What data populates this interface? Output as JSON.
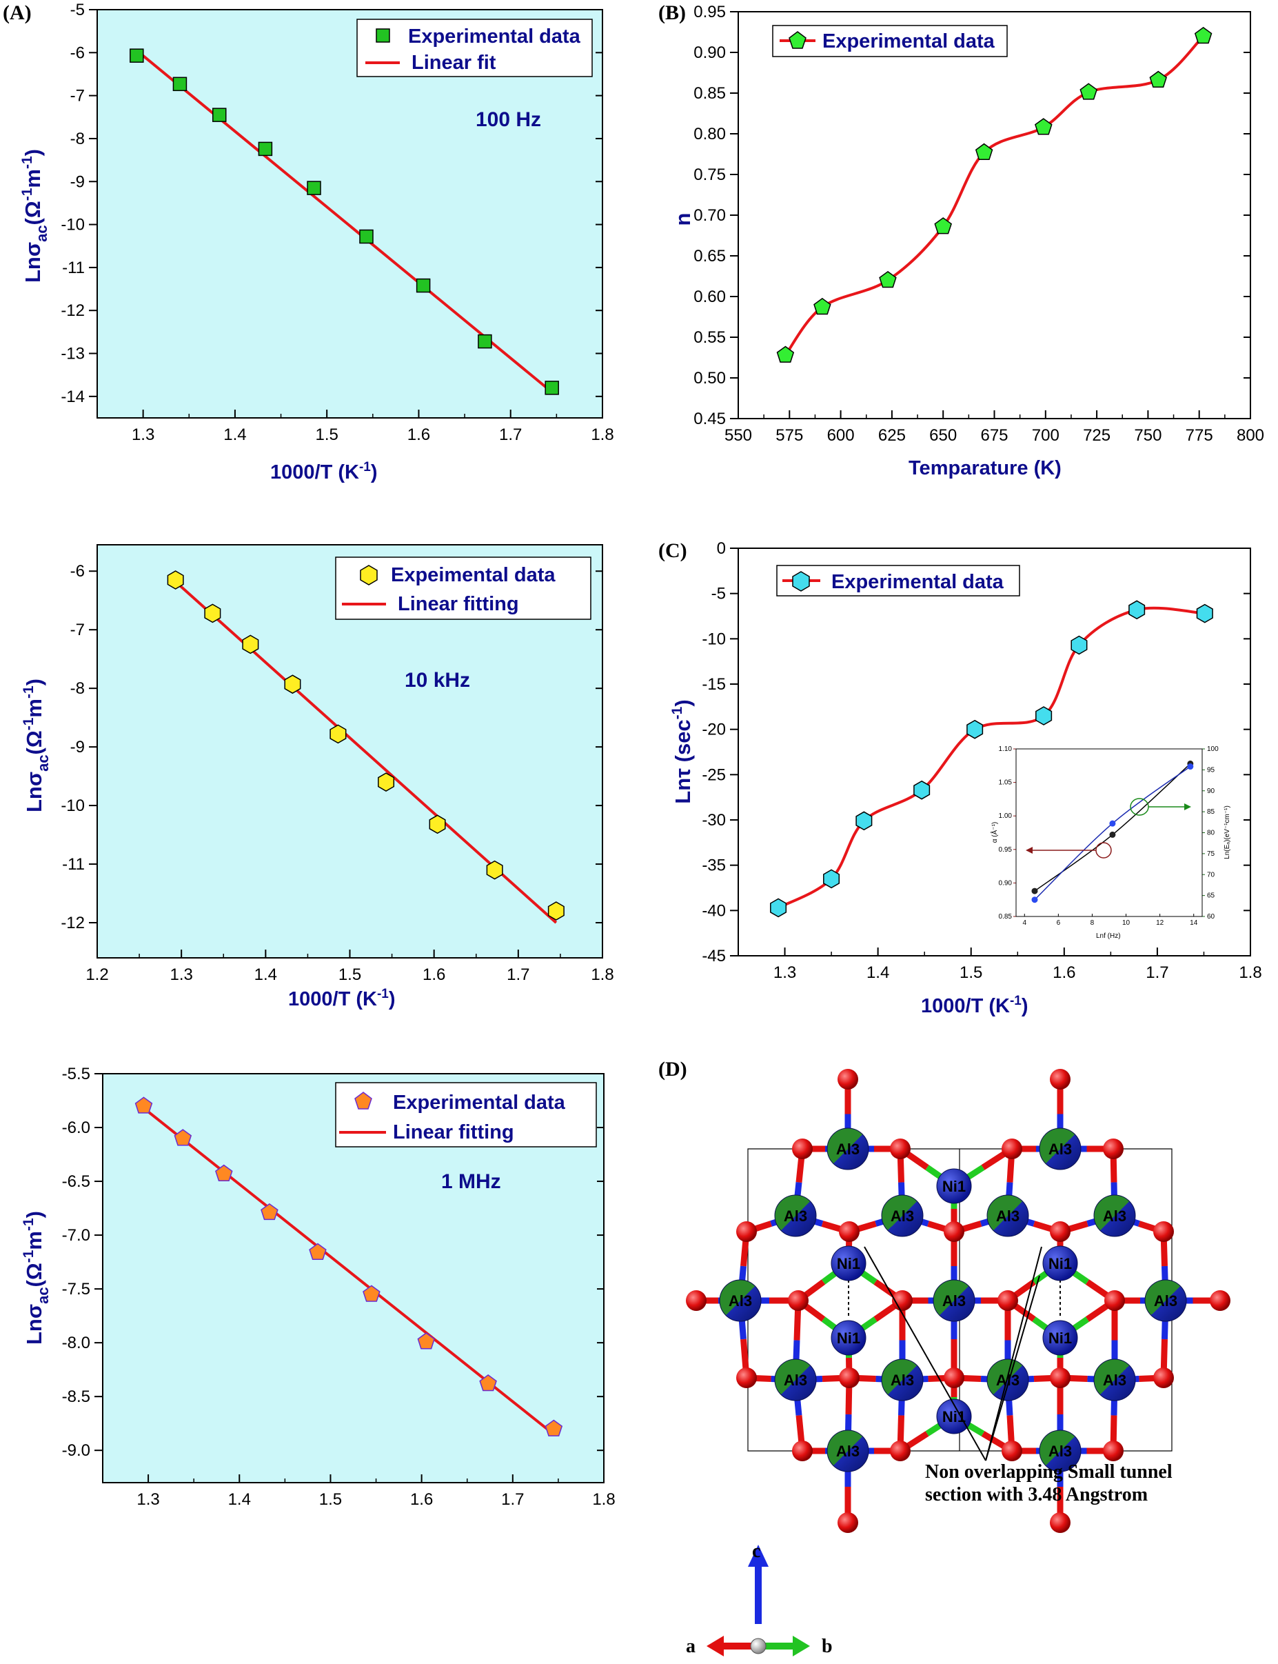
{
  "panel_labels": {
    "A": "(A)",
    "B": "(B)",
    "C": "(C)",
    "D": "(D)"
  },
  "colors": {
    "plot_bg": "#ccf7f9",
    "fit_line": "#e8161a",
    "axis_text": "#0d0d8c",
    "square_marker": "#22c322",
    "hexagon_marker_yellow": "#ffee22",
    "pentagon_marker_orange": "#ff8822",
    "pentagon_marker_green": "#33ee33",
    "hexagon_marker_cyan": "#44ddee"
  },
  "chart_data": [
    {
      "id": "A",
      "type": "scatter",
      "xlabel": "1000/T (K",
      "xlabel_sup": "-1",
      "xlabel_end": ")",
      "ylabel_prefix": "Ln",
      "ylabel_sigma": "σ",
      "ylabel_sub": "ac",
      "ylabel_unit": "(Ω",
      "ylabel_sup1": "-1",
      "ylabel_mid": "m",
      "ylabel_sup2": "-1",
      "ylabel_end": ")",
      "xlim": [
        1.25,
        1.8
      ],
      "ylim": [
        -14.5,
        -5
      ],
      "xticks": [
        "1.3",
        "1.4",
        "1.5",
        "1.6",
        "1.7",
        "1.8"
      ],
      "yticks": [
        "-5",
        "-6",
        "-7",
        "-8",
        "-9",
        "-10",
        "-11",
        "-12",
        "-13",
        "-14"
      ],
      "annotation": "100 Hz",
      "legend": [
        "Experimental data",
        "Linear fit"
      ],
      "marker": "square",
      "series": [
        {
          "x": [
            1.293,
            1.34,
            1.383,
            1.433,
            1.486,
            1.543,
            1.605,
            1.672,
            1.745
          ],
          "y": [
            -6.07,
            -6.73,
            -7.45,
            -8.24,
            -9.15,
            -10.28,
            -11.42,
            -12.72,
            -13.8
          ]
        }
      ],
      "fit": {
        "x": [
          1.293,
          1.745
        ],
        "y": [
          -5.95,
          -13.9
        ]
      }
    },
    {
      "id": "B",
      "type": "line",
      "xlabel": "Temparature (K)",
      "ylabel": "n",
      "xlim": [
        550,
        800
      ],
      "ylim": [
        0.45,
        0.95
      ],
      "xticks": [
        "550",
        "575",
        "600",
        "625",
        "650",
        "675",
        "700",
        "725",
        "750",
        "775",
        "800"
      ],
      "yticks": [
        "0.45",
        "0.50",
        "0.55",
        "0.60",
        "0.65",
        "0.70",
        "0.75",
        "0.80",
        "0.85",
        "0.90",
        "0.95"
      ],
      "legend": [
        "Experimental data"
      ],
      "marker": "pentagon",
      "series": [
        {
          "x": [
            573,
            591,
            623,
            650,
            670,
            699,
            721,
            755,
            777
          ],
          "y": [
            0.528,
            0.587,
            0.62,
            0.686,
            0.777,
            0.808,
            0.851,
            0.866,
            0.92
          ]
        }
      ]
    },
    {
      "id": "A2",
      "type": "scatter",
      "xlabel": "1000/T (K",
      "xlabel_sup": "-1",
      "xlabel_end": ")",
      "ylabel_prefix": "Ln",
      "ylabel_sigma": "σ",
      "ylabel_sub": "ac",
      "ylabel_unit": "(Ω",
      "ylabel_sup1": "-1",
      "ylabel_mid": "m",
      "ylabel_sup2": "-1",
      "ylabel_end": ")",
      "xlim": [
        1.2,
        1.8
      ],
      "ylim": [
        -12.6,
        -5.55
      ],
      "xticks": [
        "1.2",
        "1.3",
        "1.4",
        "1.5",
        "1.6",
        "1.7",
        "1.8"
      ],
      "yticks": [
        "-6",
        "-7",
        "-8",
        "-9",
        "-10",
        "-11",
        "-12"
      ],
      "annotation": "10 kHz",
      "legend": [
        "Expeimental data",
        "Linear fitting"
      ],
      "marker": "hexagon",
      "series": [
        {
          "x": [
            1.293,
            1.337,
            1.382,
            1.432,
            1.486,
            1.543,
            1.604,
            1.672,
            1.745
          ],
          "y": [
            -6.15,
            -6.72,
            -7.25,
            -7.93,
            -8.78,
            -9.6,
            -10.32,
            -11.1,
            -11.8
          ]
        }
      ],
      "fit": {
        "x": [
          1.293,
          1.745
        ],
        "y": [
          -6.18,
          -12.0
        ]
      }
    },
    {
      "id": "C",
      "type": "line",
      "xlabel": "1000/T (K",
      "xlabel_sup": "-1",
      "xlabel_end": ")",
      "ylabel_prefix": "Ln",
      "ylabel_tau": "τ",
      "ylabel_unit": " (sec",
      "ylabel_sup": "-1",
      "ylabel_end": ")",
      "xlim": [
        1.25,
        1.8
      ],
      "ylim": [
        -45,
        0
      ],
      "xticks": [
        "1.3",
        "1.4",
        "1.5",
        "1.6",
        "1.7",
        "1.8"
      ],
      "yticks": [
        "0",
        "-5",
        "-10",
        "-15",
        "-20",
        "-25",
        "-30",
        "-35",
        "-40",
        "-45"
      ],
      "legend": [
        "Experimental data"
      ],
      "marker": "hexagon",
      "series": [
        {
          "x": [
            1.293,
            1.35,
            1.385,
            1.447,
            1.504,
            1.578,
            1.616,
            1.678,
            1.751
          ],
          "y": [
            -39.7,
            -36.5,
            -30.1,
            -26.7,
            -20.0,
            -18.5,
            -10.7,
            -6.8,
            -7.2
          ]
        }
      ],
      "inset": {
        "xlabel": "Lnf (Hz)",
        "ylabel_left": "α (Å⁻¹)",
        "ylabel_right": "Ln(Eₐ)(eV⁻¹cm⁻¹)",
        "xticks": [
          "4",
          "6",
          "8",
          "10",
          "12",
          "14"
        ],
        "yticks_left": [
          "0.85",
          "0.90",
          "0.95",
          "1.00",
          "1.05",
          "1.10"
        ],
        "yticks_right": [
          "60",
          "65",
          "70",
          "75",
          "80",
          "85",
          "90",
          "95",
          "100"
        ],
        "xlim": [
          3.5,
          14.5
        ],
        "ylim_left": [
          0.85,
          1.1
        ],
        "ylim_right": [
          60,
          100
        ],
        "black_series": {
          "x": [
            4.6,
            9.2,
            13.8
          ],
          "y": [
            0.888,
            0.972,
            1.078
          ]
        },
        "blue_series": {
          "x": [
            4.6,
            9.2,
            13.8
          ],
          "y": [
            64.0,
            82.2,
            95.8
          ]
        }
      }
    },
    {
      "id": "A3",
      "type": "scatter",
      "xlabel": "",
      "ylabel_prefix": "Ln",
      "ylabel_sigma": "σ",
      "ylabel_sub": "ac",
      "ylabel_unit": "(Ω",
      "ylabel_sup1": "-1",
      "ylabel_mid": "m",
      "ylabel_sup2": "-1",
      "ylabel_end": ")",
      "xlim": [
        1.25,
        1.8
      ],
      "ylim": [
        -9.3,
        -5.5
      ],
      "xticks": [
        "1.3",
        "1.4",
        "1.5",
        "1.6",
        "1.7",
        "1.8"
      ],
      "yticks": [
        "-5.5",
        "-6.0",
        "-6.5",
        "-7.0",
        "-7.5",
        "-8.0",
        "-8.5",
        "-9.0"
      ],
      "annotation": "1 MHz",
      "legend": [
        "Experimental data",
        "Linear fitting"
      ],
      "marker": "pentagon",
      "series": [
        {
          "x": [
            1.295,
            1.338,
            1.383,
            1.433,
            1.486,
            1.545,
            1.605,
            1.673,
            1.745
          ],
          "y": [
            -5.8,
            -6.1,
            -6.43,
            -6.79,
            -7.16,
            -7.55,
            -7.99,
            -8.38,
            -8.8
          ]
        }
      ],
      "fit": {
        "x": [
          1.295,
          1.745
        ],
        "y": [
          -5.82,
          -8.85
        ]
      }
    }
  ],
  "structure_panel": {
    "atom_label_al": "Al3",
    "atom_label_ni": "Ni1",
    "note_line1": "Non overlapping Small tunnel",
    "note_line2": "section with 3.48 Angstrom",
    "axis_c": "c",
    "axis_a": "a",
    "axis_b": "b"
  }
}
